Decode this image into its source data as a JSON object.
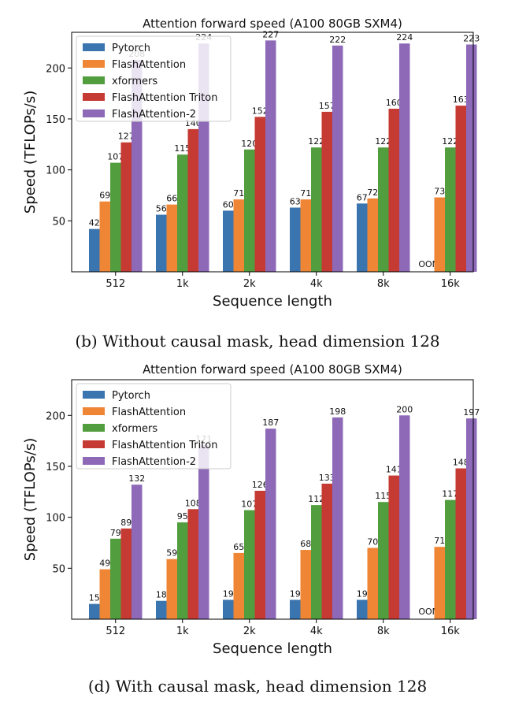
{
  "chart_data": [
    {
      "type": "bar",
      "title": "Attention forward speed (A100 80GB SXM4)",
      "xlabel": "Sequence length",
      "ylabel": "Speed (TFLOPs/s)",
      "caption": "(b) Without causal mask, head dimension 128",
      "categories": [
        "512",
        "1k",
        "2k",
        "4k",
        "8k",
        "16k"
      ],
      "ylim": [
        0,
        235
      ],
      "yticks": [
        50,
        100,
        150,
        200
      ],
      "legend_position": "top-left",
      "series": [
        {
          "name": "Pytorch",
          "color": "#3b75af",
          "values": [
            42,
            56,
            60,
            63,
            67,
            null
          ],
          "labels": [
            "42",
            "56",
            "60",
            "63",
            "67",
            "OOM"
          ]
        },
        {
          "name": "FlashAttention",
          "color": "#ef8636",
          "values": [
            69,
            66,
            71,
            71,
            72,
            73
          ],
          "labels": [
            "69",
            "66",
            "71",
            "71",
            "72",
            "73"
          ]
        },
        {
          "name": "xformers",
          "color": "#529e3e",
          "values": [
            107,
            115,
            120,
            122,
            122,
            122
          ],
          "labels": [
            "107",
            "115",
            "120",
            "122",
            "122",
            "122"
          ]
        },
        {
          "name": "FlashAttention Triton",
          "color": "#c53a32",
          "values": [
            127,
            140,
            152,
            157,
            160,
            163
          ],
          "labels": [
            "127",
            "140",
            "152",
            "157",
            "160",
            "163"
          ]
        },
        {
          "name": "FlashAttention-2",
          "color": "#8d69b8",
          "values": [
            208,
            224,
            227,
            222,
            224,
            223
          ],
          "labels": [
            "208",
            "224",
            "227",
            "222",
            "224",
            "223"
          ]
        }
      ]
    },
    {
      "type": "bar",
      "title": "Attention forward speed (A100 80GB SXM4)",
      "xlabel": "Sequence length",
      "ylabel": "Speed (TFLOPs/s)",
      "caption": "(d) With causal mask, head dimension 128",
      "categories": [
        "512",
        "1k",
        "2k",
        "4k",
        "8k",
        "16k"
      ],
      "ylim": [
        0,
        235
      ],
      "yticks": [
        50,
        100,
        150,
        200
      ],
      "legend_position": "top-left",
      "series": [
        {
          "name": "Pytorch",
          "color": "#3b75af",
          "values": [
            15,
            18,
            19,
            19,
            19,
            null
          ],
          "labels": [
            "15",
            "18",
            "19",
            "19",
            "19",
            "OOM"
          ]
        },
        {
          "name": "FlashAttention",
          "color": "#ef8636",
          "values": [
            49,
            59,
            65,
            68,
            70,
            71
          ],
          "labels": [
            "49",
            "59",
            "65",
            "68",
            "70",
            "71"
          ]
        },
        {
          "name": "xformers",
          "color": "#529e3e",
          "values": [
            79,
            95,
            107,
            112,
            115,
            117
          ],
          "labels": [
            "79",
            "95",
            "107",
            "112",
            "115",
            "117"
          ]
        },
        {
          "name": "FlashAttention Triton",
          "color": "#c53a32",
          "values": [
            89,
            108,
            126,
            133,
            141,
            148
          ],
          "labels": [
            "89",
            "108",
            "126",
            "133",
            "141",
            "148"
          ]
        },
        {
          "name": "FlashAttention-2",
          "color": "#8d69b8",
          "values": [
            132,
            171,
            187,
            198,
            200,
            197
          ],
          "labels": [
            "132",
            "171",
            "187",
            "198",
            "200",
            "197"
          ]
        }
      ]
    }
  ]
}
